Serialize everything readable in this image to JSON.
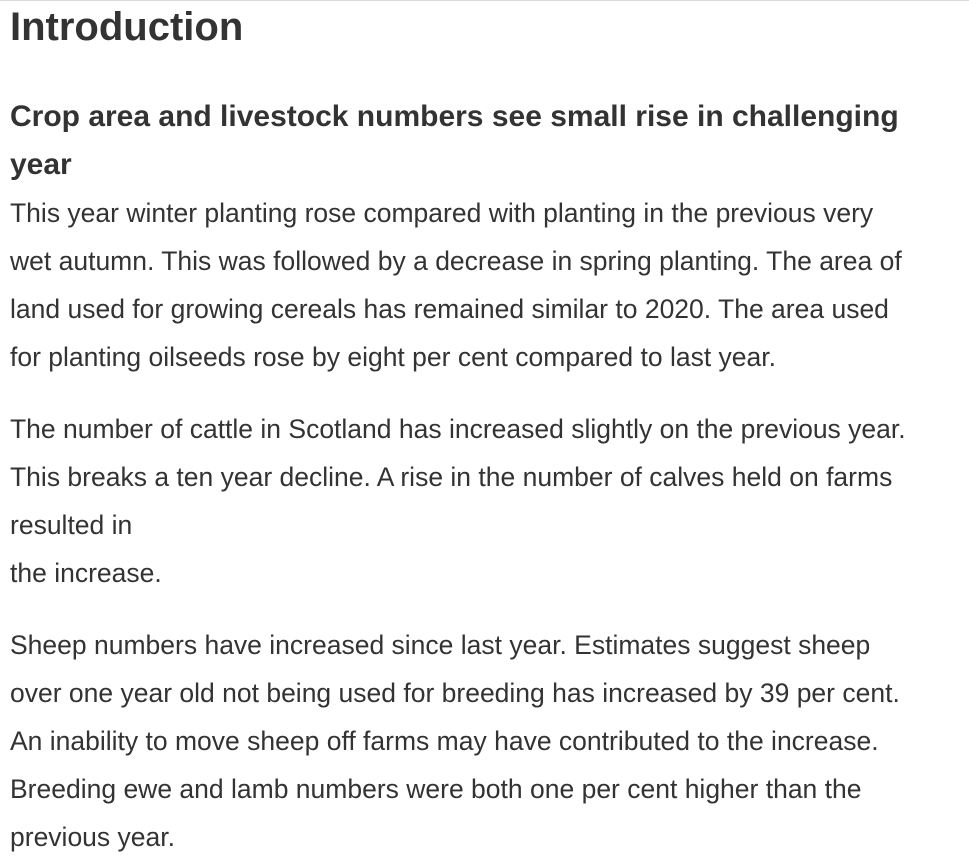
{
  "page": {
    "heading": "Introduction",
    "subheading_lines": [
      "Crop area and livestock numbers see small rise in challenging",
      "year"
    ],
    "paragraphs": [
      {
        "lines": [
          "This year winter planting rose compared with planting in the previous very",
          "wet autumn. This was followed by a decrease in spring planting. The area of",
          "land used for growing cereals has remained similar to 2020. The area used",
          "for planting oilseeds rose by eight per cent compared to last year."
        ]
      },
      {
        "lines": [
          "The number of cattle in Scotland has increased slightly on the previous year.",
          "This breaks a ten year decline. A rise in the number of calves held on farms",
          "resulted in",
          "the increase."
        ]
      },
      {
        "lines": [
          "Sheep numbers have increased since last year. Estimates suggest sheep",
          "over one year old not being used for breeding has increased by 39 per cent.",
          "An inability to move sheep off farms may have contributed to the increase.",
          "Breeding ewe and lamb numbers were both one per cent higher than the",
          "previous year."
        ]
      }
    ]
  }
}
